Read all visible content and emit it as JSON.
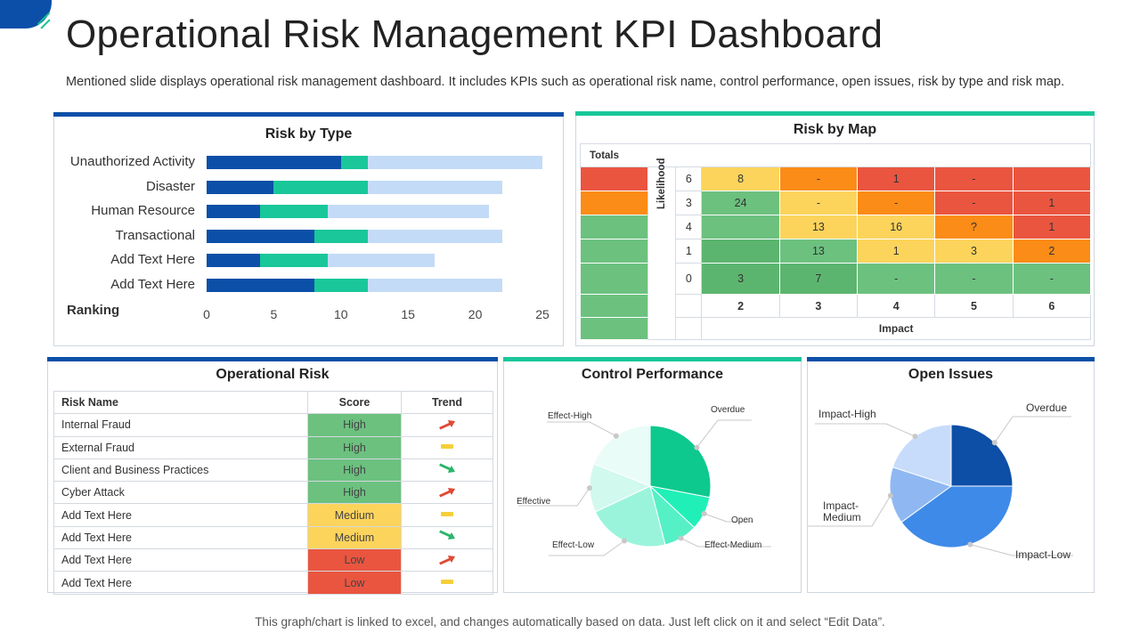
{
  "page": {
    "title": "Operational Risk Management KPI Dashboard",
    "description": "Mentioned slide displays operational risk management dashboard. It includes KPIs such as operational risk name, control performance, open issues, risk by type and risk map.",
    "footer": "This graph/chart is linked to excel, and changes automatically based on data. Just left click on it and select “Edit Data”."
  },
  "colors": {
    "dark_blue": "#0b4fa8",
    "teal": "#19c79a",
    "light_blue": "#c3dbf7",
    "red": "#ea5540",
    "orange": "#fb8c17",
    "yellow": "#fcd45c",
    "green": "#6cc17f",
    "green_dark": "#5cb56f"
  },
  "risk_by_type": {
    "title": "Risk by Type",
    "y_axis_title": "Ranking",
    "chart_data": {
      "type": "bar",
      "orientation": "horizontal",
      "stacked": true,
      "categories": [
        "Unauthorized Activity",
        "Disaster",
        "Human Resource",
        "Transactional",
        "Add Text Here",
        "Add Text Here"
      ],
      "series": [
        {
          "color": "#0b4fa8",
          "values": [
            10,
            5,
            4,
            8,
            4,
            8
          ]
        },
        {
          "color": "#19c79a",
          "values": [
            2,
            7,
            5,
            4,
            5,
            4
          ]
        },
        {
          "color": "#c3dbf7",
          "values": [
            13,
            10,
            12,
            10,
            8,
            10
          ]
        }
      ],
      "xlim": [
        0,
        25
      ],
      "xticks": [
        "0",
        "5",
        "10",
        "15",
        "20",
        "25"
      ],
      "grid": false,
      "legend": "none"
    }
  },
  "risk_by_map": {
    "title": "Risk by Map",
    "totals_label": "Totals",
    "likelihood_label": "Likelihood",
    "impact_label": "Impact",
    "likelihood_values": [
      "6",
      "3",
      "4",
      "1",
      "0"
    ],
    "impact_values": [
      "2",
      "3",
      "4",
      "5",
      "6"
    ],
    "totals_colors": [
      "red",
      "orange",
      "green",
      "green",
      "green",
      "green",
      "green"
    ],
    "rows": [
      [
        {
          "v": "8",
          "c": "yellow"
        },
        {
          "v": "-",
          "c": "orange"
        },
        {
          "v": "1",
          "c": "red"
        },
        {
          "v": "-",
          "c": "red"
        },
        {
          "v": "",
          "c": "red"
        }
      ],
      [
        {
          "v": "24",
          "c": "green"
        },
        {
          "v": "-",
          "c": "yellow"
        },
        {
          "v": "-",
          "c": "orange"
        },
        {
          "v": "-",
          "c": "red"
        },
        {
          "v": "1",
          "c": "red"
        }
      ],
      [
        {
          "v": "",
          "c": "green"
        },
        {
          "v": "13",
          "c": "yellow"
        },
        {
          "v": "16",
          "c": "yellow"
        },
        {
          "v": "?",
          "c": "orange"
        },
        {
          "v": "1",
          "c": "red"
        }
      ],
      [
        {
          "v": "",
          "c": "green_dark"
        },
        {
          "v": "13",
          "c": "green"
        },
        {
          "v": "1",
          "c": "yellow"
        },
        {
          "v": "3",
          "c": "yellow"
        },
        {
          "v": "2",
          "c": "orange"
        }
      ],
      [
        {
          "v": "3",
          "c": "green_dark"
        },
        {
          "v": "7",
          "c": "green_dark"
        },
        {
          "v": "-",
          "c": "green"
        },
        {
          "v": "-",
          "c": "green"
        },
        {
          "v": "-",
          "c": "green"
        }
      ]
    ]
  },
  "operational_risk": {
    "title": "Operational Risk",
    "columns": [
      "Risk Name",
      "Score",
      "Trend"
    ],
    "rows": [
      {
        "name": "Internal Fraud",
        "score": "High",
        "score_color": "#6cc17f",
        "trend": "up"
      },
      {
        "name": "External Fraud",
        "score": "High",
        "score_color": "#6cc17f",
        "trend": "flat"
      },
      {
        "name": "Client and Business Practices",
        "score": "High",
        "score_color": "#6cc17f",
        "trend": "down"
      },
      {
        "name": "Cyber Attack",
        "score": "High",
        "score_color": "#6cc17f",
        "trend": "up"
      },
      {
        "name": "Add Text Here",
        "score": "Medium",
        "score_color": "#fcd45c",
        "trend": "flat"
      },
      {
        "name": "Add Text Here",
        "score": "Medium",
        "score_color": "#fcd45c",
        "trend": "down"
      },
      {
        "name": "Add Text Here",
        "score": "Low",
        "score_color": "#ea5540",
        "trend": "up"
      },
      {
        "name": "Add Text Here",
        "score": "Low",
        "score_color": "#ea5540",
        "trend": "flat"
      }
    ],
    "trend_colors": {
      "up": "#e04a35",
      "flat": "#f5cf3a",
      "down": "#2bb56a"
    }
  },
  "control_performance": {
    "title": "Control Performance",
    "chart_data": {
      "type": "pie",
      "slices": [
        {
          "name": "Overdue",
          "value": 28,
          "color": "#0dc98e"
        },
        {
          "name": "Open",
          "value": 9,
          "color": "#20f0b7"
        },
        {
          "name": "Effect-Medium",
          "value": 9,
          "color": "#56f0c6"
        },
        {
          "name": "Effect-Low",
          "value": 22,
          "color": "#9af4dc"
        },
        {
          "name": "Effective",
          "value": 13,
          "color": "#d2f9ee"
        },
        {
          "name": "Effect-High",
          "value": 19,
          "color": "#e9fcf7"
        }
      ]
    }
  },
  "open_issues": {
    "title": "Open Issues",
    "chart_data": {
      "type": "pie",
      "slices": [
        {
          "name": "Overdue",
          "value": 25,
          "color": "#0d4fa6"
        },
        {
          "name": "Impact-Low",
          "value": 40,
          "color": "#3e8ae8"
        },
        {
          "name": "Impact-Medium",
          "value": 15,
          "color": "#8fb8f2"
        },
        {
          "name": "Impact-High",
          "value": 20,
          "color": "#c7dcfb"
        }
      ]
    }
  }
}
